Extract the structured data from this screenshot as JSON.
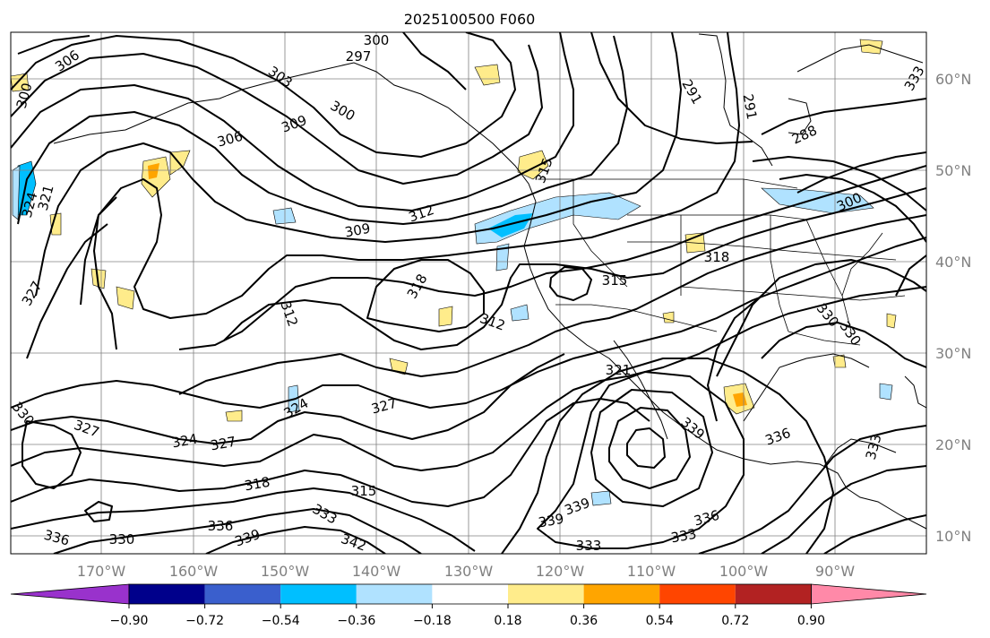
{
  "title": "2025100500 F060",
  "map": {
    "lat_labels": [
      "60°N",
      "50°N",
      "40°N",
      "30°N",
      "20°N",
      "10°N"
    ],
    "lon_labels": [
      "170°W",
      "160°W",
      "150°W",
      "140°W",
      "130°W",
      "120°W",
      "110°W",
      "100°W",
      "90°W"
    ]
  },
  "colorbar": {
    "colors": [
      "#9932cc",
      "#00008b",
      "#3a5fcd",
      "#00bfff",
      "#b0e2ff",
      "#ffffff",
      "#ffec8b",
      "#ffa500",
      "#ff4500",
      "#b22222",
      "#ff89a8"
    ],
    "labels": [
      "−0.90",
      "−0.72",
      "−0.54",
      "−0.36",
      "−0.18",
      "0.18",
      "0.36",
      "0.54",
      "0.72",
      "0.90"
    ]
  },
  "contour_labels": [
    "300",
    "297",
    "306",
    "303",
    "300",
    "309",
    "306",
    "300",
    "291",
    "291",
    "288",
    "315",
    "312",
    "309",
    "324",
    "321",
    "318",
    "300",
    "318",
    "315",
    "312",
    "312",
    "330",
    "330",
    "327",
    "321",
    "324",
    "327",
    "324",
    "327",
    "327",
    "333",
    "330",
    "339",
    "336",
    "318",
    "315",
    "333",
    "342",
    "339",
    "339",
    "333",
    "336",
    "333",
    "336",
    "330",
    "336",
    "339",
    "333"
  ]
}
